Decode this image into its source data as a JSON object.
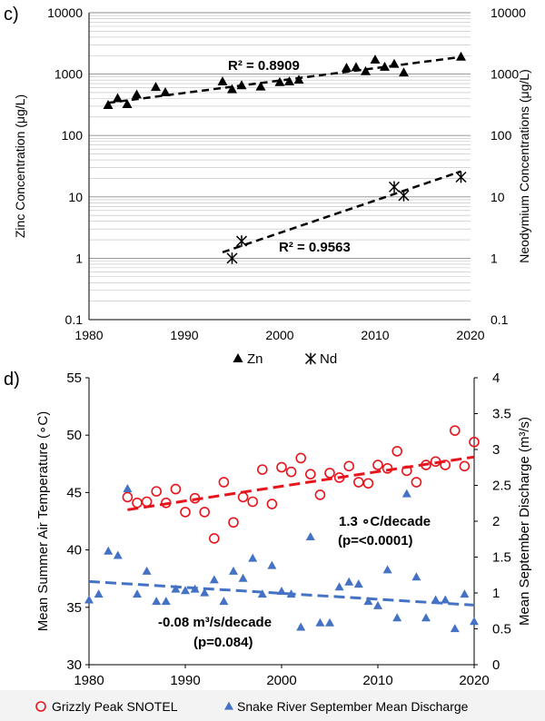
{
  "chart_data": [
    {
      "panel_label": "c)",
      "type": "scatter",
      "yscale": "log",
      "xlim": [
        1980,
        2020
      ],
      "ylim": [
        0.1,
        10000
      ],
      "x_ticks": [
        "1980",
        "1990",
        "2000",
        "2010",
        "2020"
      ],
      "y_ticks_left": [
        "0.1",
        "1",
        "10",
        "100",
        "1000",
        "10000"
      ],
      "y_ticks_right": [
        "0.1",
        "1",
        "10",
        "100",
        "1000",
        "10000"
      ],
      "ylabel_left": "Zinc Concentration (μg/L)",
      "ylabel_right": "Neodymium Concentrations (μg/L)",
      "grid": "minor-log horizontal",
      "legend_position": "bottom",
      "series": [
        {
          "name": "Zn",
          "marker": "triangle",
          "color": "#000000",
          "points": [
            [
              1982,
              310
            ],
            [
              1983,
              400
            ],
            [
              1984,
              320
            ],
            [
              1985,
              460
            ],
            [
              1987,
              610
            ],
            [
              1988,
              500
            ],
            [
              1994,
              750
            ],
            [
              1995,
              560
            ],
            [
              1996,
              650
            ],
            [
              1998,
              620
            ],
            [
              2000,
              730
            ],
            [
              2001,
              750
            ],
            [
              2002,
              800
            ],
            [
              2007,
              1250
            ],
            [
              2008,
              1280
            ],
            [
              2009,
              1100
            ],
            [
              2010,
              1700
            ],
            [
              2011,
              1300
            ],
            [
              2012,
              1450
            ],
            [
              2013,
              1050
            ],
            [
              2019,
              1900
            ]
          ],
          "trend": {
            "x": [
              1982,
              2019
            ],
            "y": [
              340,
              1900
            ]
          },
          "r2_label": "R² = 0.8909"
        },
        {
          "name": "Nd",
          "marker": "asterisk",
          "color": "#000000",
          "points": [
            [
              1995,
              1.0
            ],
            [
              1996,
              1.9
            ],
            [
              2012,
              14.5
            ],
            [
              2013,
              10.5
            ],
            [
              2019,
              21
            ]
          ],
          "trend": {
            "x": [
              1994,
              2019
            ],
            "y": [
              1.25,
              26
            ]
          },
          "r2_label": "R² = 0.9563"
        }
      ]
    },
    {
      "panel_label": "d)",
      "type": "scatter",
      "xlim": [
        1980,
        2020
      ],
      "ylim_left": [
        30,
        55
      ],
      "ylim_right": [
        0,
        4
      ],
      "x_ticks": [
        "1980",
        "1990",
        "2000",
        "2010",
        "2020"
      ],
      "y_ticks_left": [
        "30",
        "35",
        "40",
        "45",
        "50",
        "55"
      ],
      "y_ticks_right": [
        "0",
        "0.5",
        "1",
        "1.5",
        "2",
        "2.5",
        "3",
        "3.5",
        "4"
      ],
      "ylabel_left": "Mean Summer Air Temperature (∘C)",
      "ylabel_right": "Mean September Discharge (m³/s)",
      "legend_position": "bottom",
      "series": [
        {
          "name": "Grizzly Peak SNOTEL",
          "marker": "open-circle",
          "color": "#e8141c",
          "axis": "left",
          "points": [
            [
              1984,
              44.6
            ],
            [
              1985,
              44.1
            ],
            [
              1986,
              44.2
            ],
            [
              1987,
              45.1
            ],
            [
              1988,
              44.1
            ],
            [
              1989,
              45.3
            ],
            [
              1990,
              43.3
            ],
            [
              1991,
              44.5
            ],
            [
              1992,
              43.3
            ],
            [
              1993,
              41.0
            ],
            [
              1994,
              45.9
            ],
            [
              1995,
              42.4
            ],
            [
              1996,
              44.6
            ],
            [
              1997,
              44.2
            ],
            [
              1998,
              47.0
            ],
            [
              1999,
              44.0
            ],
            [
              2000,
              47.2
            ],
            [
              2001,
              46.8
            ],
            [
              2002,
              48.0
            ],
            [
              2003,
              46.6
            ],
            [
              2004,
              44.8
            ],
            [
              2005,
              46.7
            ],
            [
              2006,
              46.3
            ],
            [
              2007,
              47.3
            ],
            [
              2008,
              45.9
            ],
            [
              2009,
              45.8
            ],
            [
              2010,
              47.4
            ],
            [
              2011,
              47.1
            ],
            [
              2012,
              48.6
            ],
            [
              2013,
              46.9
            ],
            [
              2014,
              45.9
            ],
            [
              2015,
              47.4
            ],
            [
              2016,
              47.7
            ],
            [
              2017,
              47.4
            ],
            [
              2018,
              50.4
            ],
            [
              2019,
              47.3
            ],
            [
              2020,
              49.4
            ]
          ],
          "trend": {
            "x": [
              1984,
              2020
            ],
            "y": [
              43.5,
              48.1
            ]
          },
          "annotation": [
            "1.3 ∘C/decade",
            "(p=<0.0001)"
          ]
        },
        {
          "name": "Snake River September Mean Discharge",
          "marker": "triangle",
          "color": "#4472c4",
          "axis": "right",
          "points": [
            [
              1980,
              0.9
            ],
            [
              1981,
              0.98
            ],
            [
              1982,
              1.58
            ],
            [
              1983,
              1.52
            ],
            [
              1984,
              2.45
            ],
            [
              1985,
              0.98
            ],
            [
              1986,
              1.3
            ],
            [
              1987,
              0.88
            ],
            [
              1988,
              0.88
            ],
            [
              1989,
              1.05
            ],
            [
              1990,
              1.03
            ],
            [
              1991,
              1.05
            ],
            [
              1992,
              1.0
            ],
            [
              1993,
              1.18
            ],
            [
              1994,
              0.88
            ],
            [
              1995,
              1.3
            ],
            [
              1996,
              1.2
            ],
            [
              1997,
              1.48
            ],
            [
              1998,
              0.98
            ],
            [
              1999,
              1.38
            ],
            [
              2000,
              1.02
            ],
            [
              2001,
              0.98
            ],
            [
              2002,
              0.52
            ],
            [
              2003,
              1.78
            ],
            [
              2004,
              0.58
            ],
            [
              2005,
              0.58
            ],
            [
              2006,
              1.08
            ],
            [
              2007,
              1.15
            ],
            [
              2008,
              1.12
            ],
            [
              2009,
              0.88
            ],
            [
              2010,
              0.82
            ],
            [
              2011,
              1.32
            ],
            [
              2012,
              0.65
            ],
            [
              2013,
              2.38
            ],
            [
              2014,
              1.22
            ],
            [
              2015,
              0.65
            ],
            [
              2016,
              0.9
            ],
            [
              2017,
              0.9
            ],
            [
              2018,
              0.5
            ],
            [
              2019,
              0.98
            ],
            [
              2020,
              0.6
            ]
          ],
          "trend": {
            "x": [
              1980,
              2020
            ],
            "y": [
              1.16,
              0.83
            ]
          },
          "annotation": [
            "-0.08 m³/s/decade",
            "(p=0.084)"
          ]
        }
      ]
    }
  ]
}
